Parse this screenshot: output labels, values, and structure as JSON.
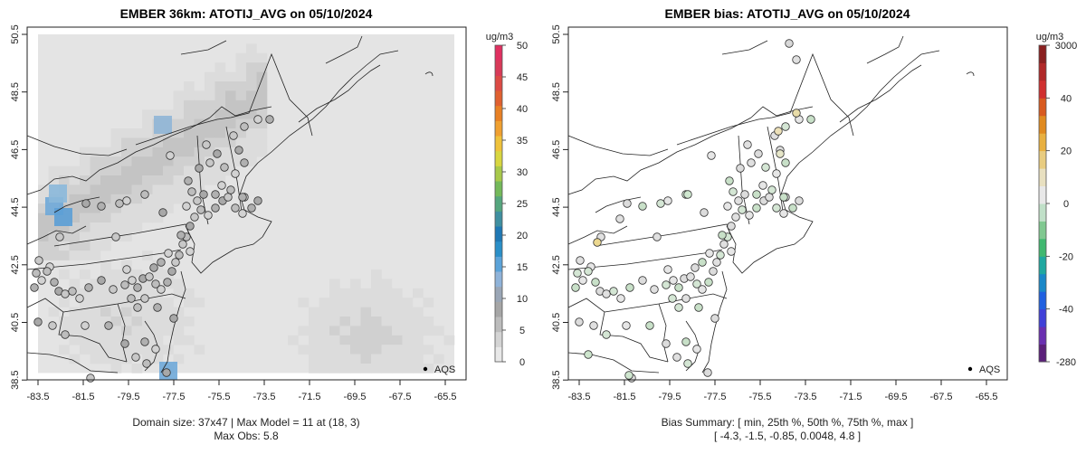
{
  "left_panel": {
    "title": "EMBER 36km: ATOTIJ_AVG on 05/10/2024",
    "colorbar_unit": "ug/m3",
    "colorbar_ticks": [
      "50",
      "45",
      "40",
      "35",
      "30",
      "25",
      "20",
      "15",
      "10",
      "5",
      "0"
    ],
    "lon_ticks": [
      "-83.5",
      "-81.5",
      "-79.5",
      "-77.5",
      "-75.5",
      "-73.5",
      "-71.5",
      "-69.5",
      "-67.5",
      "-65.5"
    ],
    "lat_ticks": [
      "50.5",
      "48.5",
      "46.5",
      "44.5",
      "42.5",
      "40.5",
      "38.5"
    ],
    "legend_label": "AQS",
    "caption_line1": "Domain size: 37x47 | Max Model = 11 at (18, 3)",
    "caption_line2": "Max Obs: 5.8"
  },
  "right_panel": {
    "title": "EMBER bias: ATOTIJ_AVG on 05/10/2024",
    "colorbar_unit": "ug/m3",
    "colorbar_ticks": [
      "3000",
      "40",
      "20",
      "0",
      "-20",
      "-40",
      "-280"
    ],
    "lon_ticks": [
      "-83.5",
      "-81.5",
      "-79.5",
      "-77.5",
      "-75.5",
      "-73.5",
      "-71.5",
      "-69.5",
      "-67.5",
      "-65.5"
    ],
    "lat_ticks": [
      "50.5",
      "48.5",
      "46.5",
      "44.5",
      "42.5",
      "40.5",
      "38.5"
    ],
    "legend_label": "AQS",
    "caption_line1": "Bias Summary: [ min, 25th %, 50th %, 75th %, max ]",
    "caption_line2": "[ -4.3,   -1.5,   -0.85,   0.0048,   4.8 ]"
  },
  "colors": {
    "model_scale": [
      "#e8e8e8",
      "#d4d4d4",
      "#bcbcbc",
      "#a6a6a6",
      "#9aa6b6",
      "#8fb3d9",
      "#5ba3d9",
      "#2a8fc8",
      "#1f78b4",
      "#3f8fa0",
      "#55a67e",
      "#74b95a",
      "#a8c94a",
      "#d8d640",
      "#efc23a",
      "#f0a030",
      "#e88024",
      "#e06030",
      "#dc4a44",
      "#d83a58",
      "#e03060"
    ],
    "bias_scale": [
      "#5b1f7a",
      "#6a2fb0",
      "#4040d8",
      "#2060e0",
      "#1a88c8",
      "#20a8a0",
      "#40b870",
      "#80c890",
      "#c0e0c8",
      "#e8e8e8",
      "#e8e0c0",
      "#e8cc80",
      "#e8b040",
      "#e08a20",
      "#d85a20",
      "#d03030",
      "#b02828",
      "#8a2020"
    ]
  }
}
